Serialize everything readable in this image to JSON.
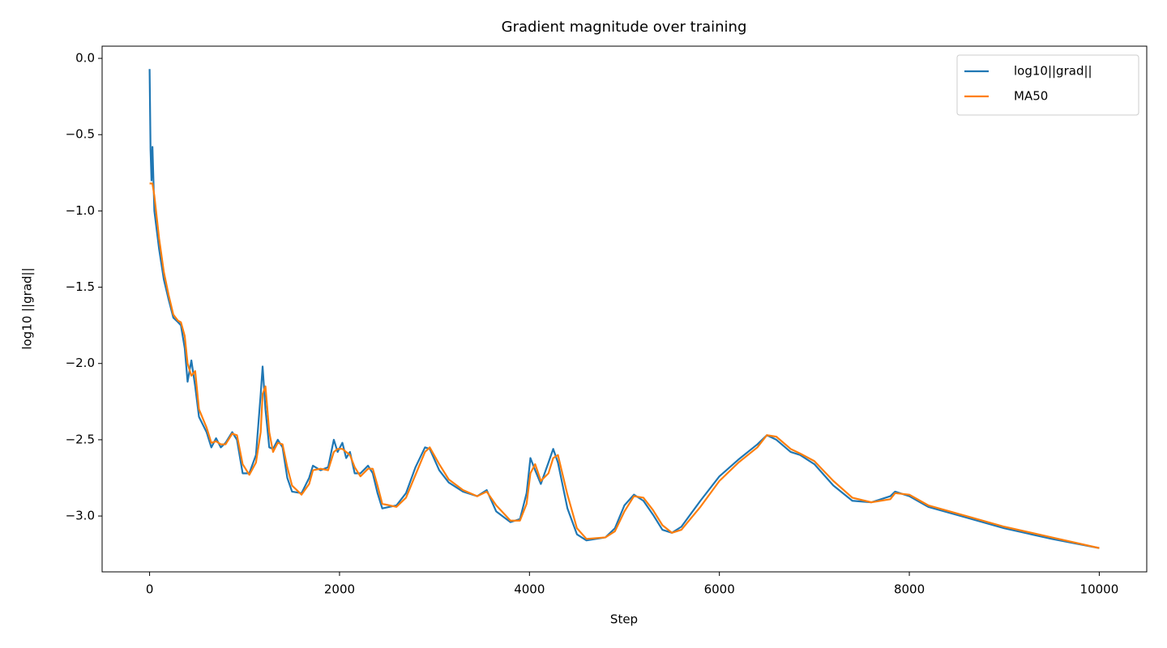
{
  "chart_data": {
    "type": "line",
    "title": "Gradient magnitude over training",
    "x_label": "Step",
    "y_label": "log10 ||grad||",
    "x": [
      0,
      10,
      20,
      30,
      50,
      100,
      150,
      200,
      250,
      300,
      330,
      370,
      400,
      440,
      480,
      520,
      600,
      650,
      700,
      750,
      800,
      870,
      920,
      980,
      1050,
      1120,
      1170,
      1190,
      1220,
      1260,
      1300,
      1350,
      1400,
      1450,
      1500,
      1600,
      1680,
      1720,
      1800,
      1880,
      1940,
      1980,
      2030,
      2070,
      2110,
      2160,
      2220,
      2300,
      2350,
      2400,
      2450,
      2600,
      2700,
      2800,
      2900,
      2950,
      3050,
      3150,
      3300,
      3450,
      3550,
      3650,
      3800,
      3900,
      3970,
      4010,
      4060,
      4120,
      4200,
      4250,
      4300,
      4400,
      4500,
      4600,
      4800,
      4900,
      5000,
      5100,
      5200,
      5300,
      5400,
      5500,
      5600,
      5800,
      6000,
      6200,
      6400,
      6500,
      6600,
      6750,
      6850,
      7000,
      7200,
      7400,
      7600,
      7800,
      7850,
      8000,
      8200,
      8600,
      9000,
      9500,
      10000
    ],
    "series": [
      {
        "name": "log10||grad||",
        "color": "#1f77b4",
        "values": [
          -0.07,
          -0.6,
          -0.8,
          -0.58,
          -1.0,
          -1.25,
          -1.45,
          -1.58,
          -1.7,
          -1.73,
          -1.75,
          -1.9,
          -2.12,
          -1.98,
          -2.15,
          -2.35,
          -2.45,
          -2.55,
          -2.49,
          -2.55,
          -2.52,
          -2.45,
          -2.5,
          -2.72,
          -2.72,
          -2.6,
          -2.2,
          -2.02,
          -2.3,
          -2.55,
          -2.56,
          -2.5,
          -2.55,
          -2.75,
          -2.84,
          -2.85,
          -2.75,
          -2.67,
          -2.7,
          -2.68,
          -2.5,
          -2.58,
          -2.52,
          -2.62,
          -2.58,
          -2.72,
          -2.72,
          -2.67,
          -2.72,
          -2.85,
          -2.95,
          -2.93,
          -2.85,
          -2.68,
          -2.55,
          -2.56,
          -2.7,
          -2.78,
          -2.84,
          -2.87,
          -2.83,
          -2.97,
          -3.04,
          -3.02,
          -2.85,
          -2.62,
          -2.7,
          -2.79,
          -2.65,
          -2.56,
          -2.65,
          -2.95,
          -3.12,
          -3.16,
          -3.14,
          -3.08,
          -2.93,
          -2.86,
          -2.9,
          -2.99,
          -3.09,
          -3.11,
          -3.07,
          -2.9,
          -2.74,
          -2.63,
          -2.53,
          -2.47,
          -2.5,
          -2.58,
          -2.6,
          -2.66,
          -2.8,
          -2.9,
          -2.91,
          -2.87,
          -2.84,
          -2.87,
          -2.94,
          -3.01,
          -3.08,
          -3.15,
          -3.21
        ]
      },
      {
        "name": "MA50",
        "color": "#ff7f0e",
        "values": [
          -0.82,
          -0.82,
          -0.82,
          -0.82,
          -0.9,
          -1.18,
          -1.4,
          -1.55,
          -1.68,
          -1.72,
          -1.73,
          -1.82,
          -2.0,
          -2.08,
          -2.05,
          -2.3,
          -2.42,
          -2.52,
          -2.51,
          -2.53,
          -2.53,
          -2.46,
          -2.47,
          -2.66,
          -2.73,
          -2.65,
          -2.45,
          -2.2,
          -2.15,
          -2.45,
          -2.58,
          -2.52,
          -2.53,
          -2.68,
          -2.8,
          -2.86,
          -2.79,
          -2.7,
          -2.69,
          -2.7,
          -2.58,
          -2.56,
          -2.56,
          -2.58,
          -2.6,
          -2.68,
          -2.74,
          -2.69,
          -2.69,
          -2.8,
          -2.92,
          -2.94,
          -2.88,
          -2.73,
          -2.58,
          -2.55,
          -2.66,
          -2.76,
          -2.83,
          -2.87,
          -2.84,
          -2.93,
          -3.03,
          -3.03,
          -2.92,
          -2.72,
          -2.66,
          -2.77,
          -2.72,
          -2.62,
          -2.6,
          -2.86,
          -3.08,
          -3.15,
          -3.14,
          -3.1,
          -2.97,
          -2.87,
          -2.88,
          -2.96,
          -3.06,
          -3.11,
          -3.09,
          -2.94,
          -2.77,
          -2.65,
          -2.55,
          -2.47,
          -2.48,
          -2.56,
          -2.59,
          -2.64,
          -2.77,
          -2.88,
          -2.91,
          -2.89,
          -2.85,
          -2.86,
          -2.93,
          -3.0,
          -3.07,
          -3.14,
          -3.21
        ]
      }
    ],
    "xlim": [
      -500,
      10500
    ],
    "ylim": [
      -3.366,
      0.08
    ],
    "xticks": [
      0,
      2000,
      4000,
      6000,
      8000,
      10000
    ],
    "yticks": [
      {
        "value": -3.0,
        "label": "−3.0"
      },
      {
        "value": -2.5,
        "label": "−2.5"
      },
      {
        "value": -2.0,
        "label": "−2.0"
      },
      {
        "value": -1.5,
        "label": "−1.5"
      },
      {
        "value": -1.0,
        "label": "−1.0"
      },
      {
        "value": -0.5,
        "label": "−0.5"
      },
      {
        "value": 0.0,
        "label": "0.0"
      }
    ],
    "grid": false,
    "legend_position": "upper-right"
  }
}
